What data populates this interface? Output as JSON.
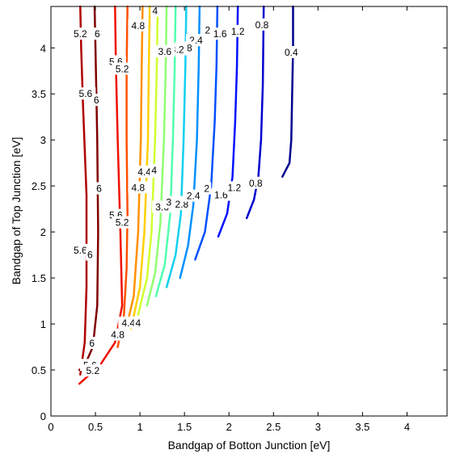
{
  "chart_data": {
    "type": "contour",
    "xlabel": "Bandgap of Botton Junction [eV]",
    "ylabel": "Bandgap of Top Junction [eV]",
    "xlim": [
      0,
      4.45
    ],
    "ylim": [
      0,
      4.45
    ],
    "xticks": [
      "0",
      "0.5",
      "1",
      "1.5",
      "2",
      "2.5",
      "3",
      "3.5",
      "4"
    ],
    "yticks": [
      "0",
      "0.5",
      "1",
      "1.5",
      "2",
      "2.5",
      "3",
      "3.5",
      "4"
    ],
    "grid": false,
    "legend": "none",
    "levels": [
      {
        "level": 0.4,
        "label": "0.4",
        "color": "#00008f",
        "points": [
          [
            2.6,
            2.6
          ],
          [
            2.68,
            2.75
          ],
          [
            2.7,
            3.0
          ],
          [
            2.71,
            3.5
          ],
          [
            2.72,
            4.0
          ],
          [
            2.72,
            4.45
          ]
        ]
      },
      {
        "level": 0.8,
        "label": "0.8",
        "color": "#0000cf",
        "points": [
          [
            2.2,
            2.15
          ],
          [
            2.28,
            2.35
          ],
          [
            2.33,
            2.6
          ],
          [
            2.36,
            3.0
          ],
          [
            2.38,
            3.6
          ],
          [
            2.39,
            4.45
          ]
        ]
      },
      {
        "level": 1.2,
        "label": "1.2",
        "color": "#0010ff",
        "points": [
          [
            1.88,
            1.95
          ],
          [
            1.98,
            2.2
          ],
          [
            2.04,
            2.6
          ],
          [
            2.07,
            3.2
          ],
          [
            2.09,
            3.8
          ],
          [
            2.1,
            4.45
          ]
        ]
      },
      {
        "level": 1.6,
        "label": "1.6",
        "color": "#0050ff",
        "points": [
          [
            1.62,
            1.7
          ],
          [
            1.73,
            2.0
          ],
          [
            1.8,
            2.5
          ],
          [
            1.84,
            3.2
          ],
          [
            1.86,
            3.8
          ],
          [
            1.87,
            4.45
          ]
        ]
      },
      {
        "level": 2.0,
        "label": "2",
        "color": "#0090ff",
        "points": [
          [
            1.45,
            1.5
          ],
          [
            1.54,
            1.85
          ],
          [
            1.6,
            2.3
          ],
          [
            1.64,
            3.0
          ],
          [
            1.66,
            3.8
          ],
          [
            1.67,
            4.45
          ]
        ]
      },
      {
        "level": 2.4,
        "label": "2.4",
        "color": "#10d0ef",
        "points": [
          [
            1.3,
            1.4
          ],
          [
            1.4,
            1.75
          ],
          [
            1.46,
            2.2
          ],
          [
            1.49,
            3.0
          ],
          [
            1.51,
            3.8
          ],
          [
            1.52,
            4.45
          ]
        ]
      },
      {
        "level": 2.8,
        "label": "2.8",
        "color": "#50ffaf",
        "points": [
          [
            1.18,
            1.3
          ],
          [
            1.28,
            1.65
          ],
          [
            1.34,
            2.2
          ],
          [
            1.37,
            3.0
          ],
          [
            1.39,
            3.8
          ],
          [
            1.4,
            4.45
          ]
        ]
      },
      {
        "level": 3.2,
        "label": "3.2",
        "color": "#90ff6f",
        "points": [
          [
            1.08,
            1.2
          ],
          [
            1.17,
            1.55
          ],
          [
            1.23,
            2.1
          ],
          [
            1.27,
            3.0
          ],
          [
            1.29,
            3.8
          ],
          [
            1.3,
            4.45
          ]
        ]
      },
      {
        "level": 3.6,
        "label": "3.6",
        "color": "#d0ff2f",
        "points": [
          [
            0.98,
            1.1
          ],
          [
            1.08,
            1.5
          ],
          [
            1.13,
            2.0
          ],
          [
            1.17,
            3.0
          ],
          [
            1.19,
            3.8
          ],
          [
            1.2,
            4.45
          ]
        ]
      },
      {
        "level": 4.0,
        "label": "4",
        "color": "#ffcf00",
        "points": [
          [
            0.9,
            0.95
          ],
          [
            1.0,
            1.4
          ],
          [
            1.05,
            2.0
          ],
          [
            1.09,
            3.0
          ],
          [
            1.1,
            3.8
          ],
          [
            1.11,
            4.45
          ]
        ]
      },
      {
        "level": 4.4,
        "label": "4.4",
        "color": "#ff9000",
        "points": [
          [
            0.82,
            0.85
          ],
          [
            0.93,
            1.3
          ],
          [
            0.98,
            2.0
          ],
          [
            1.01,
            3.0
          ],
          [
            1.02,
            3.8
          ],
          [
            1.03,
            4.45
          ]
        ]
      },
      {
        "level": 4.8,
        "label": "4.8",
        "color": "#ff5000",
        "points": [
          [
            0.75,
            0.75
          ],
          [
            0.82,
            1.1
          ],
          [
            0.85,
            1.6
          ],
          [
            0.86,
            2.2
          ],
          [
            0.85,
            3.0
          ],
          [
            0.85,
            3.8
          ],
          [
            0.86,
            4.45
          ]
        ]
      },
      {
        "level": 5.2,
        "label": "5.2",
        "color": "#ef1000",
        "points": [
          [
            0.32,
            0.35
          ],
          [
            0.55,
            0.55
          ],
          [
            0.72,
            0.8
          ],
          [
            0.8,
            1.2
          ],
          [
            0.78,
            2.0
          ],
          [
            0.75,
            3.0
          ],
          [
            0.73,
            3.8
          ],
          [
            0.72,
            4.45
          ]
        ]
      },
      {
        "level": 5.6,
        "label": "5.6",
        "color": "#af0000",
        "points": [
          [
            0.33,
            0.45
          ],
          [
            0.38,
            0.8
          ],
          [
            0.4,
            1.4
          ],
          [
            0.4,
            2.4
          ],
          [
            0.36,
            3.4
          ],
          [
            0.34,
            4.0
          ],
          [
            0.33,
            4.45
          ]
        ]
      },
      {
        "level": 6.0,
        "label": "6",
        "color": "#800000",
        "points": [
          [
            0.32,
            0.5
          ],
          [
            0.38,
            0.55
          ],
          [
            0.47,
            0.75
          ],
          [
            0.52,
            1.2
          ],
          [
            0.53,
            2.0
          ],
          [
            0.52,
            3.0
          ],
          [
            0.5,
            4.0
          ],
          [
            0.49,
            4.45
          ]
        ]
      }
    ],
    "contour_labels": [
      {
        "text": "0.4",
        "x": 2.7,
        "y": 3.95
      },
      {
        "text": "0.8",
        "x": 2.37,
        "y": 4.25
      },
      {
        "text": "1.2",
        "x": 2.1,
        "y": 4.18
      },
      {
        "text": "1.6",
        "x": 1.9,
        "y": 4.15
      },
      {
        "text": "2",
        "x": 1.76,
        "y": 4.19
      },
      {
        "text": "2.4",
        "x": 1.63,
        "y": 4.08
      },
      {
        "text": "2.8",
        "x": 1.51,
        "y": 4.0
      },
      {
        "text": "3.2",
        "x": 1.42,
        "y": 3.98
      },
      {
        "text": "3.6",
        "x": 1.28,
        "y": 3.96
      },
      {
        "text": "4",
        "x": 1.17,
        "y": 4.4
      },
      {
        "text": "4.8",
        "x": 0.98,
        "y": 4.24
      },
      {
        "text": "5.2",
        "x": 0.33,
        "y": 4.15
      },
      {
        "text": "6",
        "x": 0.52,
        "y": 4.15
      },
      {
        "text": "5.6",
        "x": 0.73,
        "y": 3.85
      },
      {
        "text": "5.2",
        "x": 0.8,
        "y": 3.77
      },
      {
        "text": "5.6",
        "x": 0.39,
        "y": 3.5
      },
      {
        "text": "6",
        "x": 0.51,
        "y": 3.43
      },
      {
        "text": "4.4",
        "x": 1.05,
        "y": 2.65
      },
      {
        "text": "4",
        "x": 1.16,
        "y": 2.67
      },
      {
        "text": "4.8",
        "x": 0.98,
        "y": 2.48
      },
      {
        "text": "6",
        "x": 0.54,
        "y": 2.47
      },
      {
        "text": "3.6",
        "x": 1.25,
        "y": 2.27
      },
      {
        "text": "3.2",
        "x": 1.37,
        "y": 2.32
      },
      {
        "text": "2.8",
        "x": 1.47,
        "y": 2.3
      },
      {
        "text": "2.4",
        "x": 1.6,
        "y": 2.39
      },
      {
        "text": "2",
        "x": 1.75,
        "y": 2.47
      },
      {
        "text": "1.6",
        "x": 1.91,
        "y": 2.4
      },
      {
        "text": "1.2",
        "x": 2.06,
        "y": 2.48
      },
      {
        "text": "0.8",
        "x": 2.3,
        "y": 2.53
      },
      {
        "text": "5.6",
        "x": 0.73,
        "y": 2.18
      },
      {
        "text": "5.2",
        "x": 0.8,
        "y": 2.1
      },
      {
        "text": "5.6",
        "x": 0.33,
        "y": 1.8
      },
      {
        "text": "6",
        "x": 0.44,
        "y": 1.75
      },
      {
        "text": "4.4",
        "x": 0.87,
        "y": 1.01
      },
      {
        "text": "4",
        "x": 0.98,
        "y": 1.01
      },
      {
        "text": "4.8",
        "x": 0.75,
        "y": 0.88
      },
      {
        "text": "6",
        "x": 0.46,
        "y": 0.79
      },
      {
        "text": "5.6",
        "x": 0.44,
        "y": 0.55
      },
      {
        "text": "5.2",
        "x": 0.47,
        "y": 0.49
      }
    ]
  }
}
